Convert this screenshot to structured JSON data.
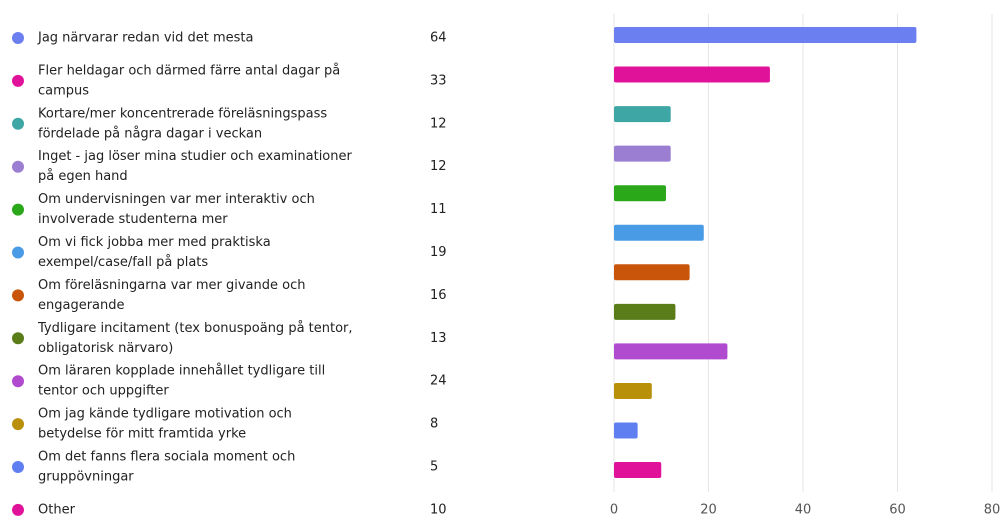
{
  "chart_data": {
    "type": "bar",
    "orientation": "horizontal",
    "categories": [
      [
        "Jag närvarar redan vid det mesta"
      ],
      [
        "Fler heldagar och därmed färre antal dagar på",
        "campus"
      ],
      [
        "Kortare/mer koncentrerade föreläsningspass",
        "fördelade på några dagar i veckan"
      ],
      [
        "Inget - jag löser mina studier och examinationer",
        "på egen hand"
      ],
      [
        "Om undervisningen var mer interaktiv och",
        "involverade studenterna mer"
      ],
      [
        "Om vi fick jobba mer med praktiska",
        "exempel/case/fall på plats"
      ],
      [
        "Om föreläsningarna var mer givande och",
        "engagerande"
      ],
      [
        "Tydligare incitament (tex bonuspoäng på tentor,",
        "obligatorisk närvaro)"
      ],
      [
        "Om läraren kopplade innehållet tydligare till",
        "tentor och uppgifter"
      ],
      [
        "Om jag kände tydligare motivation och",
        "betydelse för mitt framtida yrke"
      ],
      [
        "Om det fanns flera sociala moment och",
        "gruppövningar"
      ],
      [
        "Other"
      ]
    ],
    "values": [
      64,
      33,
      12,
      12,
      11,
      19,
      16,
      13,
      24,
      8,
      5,
      10
    ],
    "colors": [
      "#6b7ff0",
      "#e0129a",
      "#3fa6a6",
      "#9b7ed1",
      "#2aa81a",
      "#4a9be6",
      "#c8550a",
      "#5a7d1a",
      "#b04bd0",
      "#b8900a",
      "#5f7ff0",
      "#e0129a"
    ],
    "xlim": [
      0,
      80
    ],
    "xticks": [
      0,
      20,
      40,
      60,
      80
    ],
    "grid": true
  }
}
